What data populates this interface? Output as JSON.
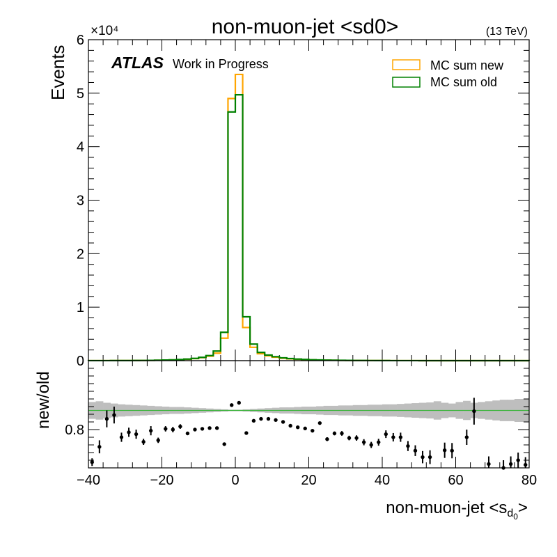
{
  "chart_data": [
    {
      "type": "line",
      "panel": "main",
      "title": "non-muon-jet <sd0>",
      "energy_label": "(13 TeV)",
      "scale_label": "×10⁴",
      "atlas_label": "ATLAS",
      "atlas_sublabel": "Work in Progress",
      "ylabel": "Events",
      "xlim": [
        -40,
        80
      ],
      "ylim": [
        0,
        60000
      ],
      "yticks": [
        0,
        10000,
        20000,
        30000,
        40000,
        50000,
        60000
      ],
      "ytick_labels": [
        "0",
        "1",
        "2",
        "3",
        "4",
        "5",
        "6"
      ],
      "legend_position": "top-right",
      "legend": [
        {
          "name": "MC sum new",
          "color": "#ffa500"
        },
        {
          "name": "MC sum old",
          "color": "#008000"
        }
      ],
      "bin_edges": [
        -40,
        -38,
        -36,
        -34,
        -32,
        -30,
        -28,
        -26,
        -24,
        -22,
        -20,
        -18,
        -16,
        -14,
        -12,
        -10,
        -8,
        -6,
        -4,
        -2,
        0,
        2,
        4,
        6,
        8,
        10,
        12,
        14,
        16,
        18,
        20,
        22,
        24,
        26,
        28,
        30,
        32,
        34,
        36,
        38,
        40,
        42,
        44,
        46,
        48,
        50,
        52,
        54,
        56,
        58,
        60,
        62,
        64,
        66,
        68,
        70,
        72,
        74,
        76,
        78,
        80
      ],
      "series": [
        {
          "name": "MC sum new",
          "color": "#ffa500",
          "values": [
            5,
            8,
            10,
            12,
            15,
            20,
            30,
            40,
            55,
            75,
            100,
            140,
            190,
            260,
            380,
            560,
            850,
            1400,
            4200,
            49000,
            53500,
            6200,
            2500,
            1300,
            900,
            640,
            460,
            340,
            260,
            200,
            150,
            115,
            90,
            70,
            55,
            42,
            33,
            26,
            20,
            16,
            12,
            10,
            8,
            6,
            5,
            4,
            3,
            3,
            2,
            2,
            2,
            1,
            1,
            1,
            1,
            1,
            1,
            1,
            1,
            1
          ]
        },
        {
          "name": "MC sum old",
          "color": "#008000",
          "values": [
            5,
            8,
            10,
            12,
            15,
            21,
            31,
            42,
            58,
            80,
            110,
            155,
            210,
            290,
            420,
            620,
            950,
            1800,
            5300,
            46500,
            49700,
            8200,
            3100,
            1550,
            1050,
            740,
            530,
            390,
            295,
            225,
            170,
            130,
            100,
            78,
            61,
            47,
            37,
            29,
            22,
            17,
            13,
            11,
            9,
            7,
            5,
            4,
            3,
            3,
            2,
            2,
            2,
            1,
            1,
            1,
            1,
            1,
            1,
            1,
            1,
            1
          ]
        }
      ]
    },
    {
      "type": "scatter",
      "panel": "ratio",
      "ylabel": "new/old",
      "xlabel": "non-muon-jet <s",
      "xlabel_sub": "d",
      "xlabel_subsub": "0",
      "xlabel_close": ">",
      "xlim": [
        -40,
        80
      ],
      "ylim": [
        0.7,
        0.98
      ],
      "yticks": [
        0.8
      ],
      "ytick_labels": [
        "0.8"
      ],
      "xticks": [
        -40,
        -20,
        0,
        20,
        40,
        60,
        80
      ],
      "xtick_labels": [
        "−40",
        "−20",
        "0",
        "20",
        "40",
        "60",
        "80"
      ],
      "reference_line": 0.85,
      "reference_color": "#3cb43c",
      "band_color": "#bebebe",
      "band_halfwidth": [
        0.022,
        0.024,
        0.02,
        0.018,
        0.016,
        0.015,
        0.014,
        0.013,
        0.012,
        0.011,
        0.01,
        0.009,
        0.009,
        0.008,
        0.007,
        0.006,
        0.005,
        0.004,
        0.003,
        0.002,
        0.002,
        0.003,
        0.004,
        0.005,
        0.006,
        0.007,
        0.008,
        0.008,
        0.009,
        0.01,
        0.01,
        0.011,
        0.012,
        0.012,
        0.013,
        0.013,
        0.014,
        0.014,
        0.015,
        0.015,
        0.016,
        0.016,
        0.017,
        0.018,
        0.019,
        0.02,
        0.021,
        0.024,
        0.02,
        0.018,
        0.022,
        0.025,
        0.02,
        0.022,
        0.024,
        0.026,
        0.028,
        0.028,
        0.03,
        0.03
      ],
      "points": [
        {
          "x": -39,
          "y": 0.715,
          "err": 0.01
        },
        {
          "x": -37,
          "y": 0.755,
          "err": 0.017
        },
        {
          "x": -35,
          "y": 0.828,
          "err": 0.022
        },
        {
          "x": -33,
          "y": 0.838,
          "err": 0.022
        },
        {
          "x": -31,
          "y": 0.78,
          "err": 0.012
        },
        {
          "x": -29,
          "y": 0.793,
          "err": 0.012
        },
        {
          "x": -27,
          "y": 0.788,
          "err": 0.012
        },
        {
          "x": -25,
          "y": 0.768,
          "err": 0.008
        },
        {
          "x": -23,
          "y": 0.797,
          "err": 0.012
        },
        {
          "x": -21,
          "y": 0.772,
          "err": 0.007
        },
        {
          "x": -19,
          "y": 0.802,
          "err": 0.007
        },
        {
          "x": -17,
          "y": 0.8,
          "err": 0.007
        },
        {
          "x": -15,
          "y": 0.808,
          "err": 0.006
        },
        {
          "x": -13,
          "y": 0.79,
          "err": 0.004
        },
        {
          "x": -11,
          "y": 0.8,
          "err": 0.003
        },
        {
          "x": -9,
          "y": 0.802,
          "err": 0.003
        },
        {
          "x": -7,
          "y": 0.804,
          "err": 0.002
        },
        {
          "x": -5,
          "y": 0.804,
          "err": 0.002
        },
        {
          "x": -3,
          "y": 0.762,
          "err": 0.002
        },
        {
          "x": -1,
          "y": 0.864,
          "err": 0.002
        },
        {
          "x": 1,
          "y": 0.87,
          "err": 0.002
        },
        {
          "x": 3,
          "y": 0.791,
          "err": 0.002
        },
        {
          "x": 5,
          "y": 0.823,
          "err": 0.002
        },
        {
          "x": 7,
          "y": 0.828,
          "err": 0.002
        },
        {
          "x": 9,
          "y": 0.828,
          "err": 0.002
        },
        {
          "x": 11,
          "y": 0.825,
          "err": 0.003
        },
        {
          "x": 13,
          "y": 0.82,
          "err": 0.003
        },
        {
          "x": 15,
          "y": 0.81,
          "err": 0.003
        },
        {
          "x": 17,
          "y": 0.806,
          "err": 0.003
        },
        {
          "x": 19,
          "y": 0.803,
          "err": 0.004
        },
        {
          "x": 21,
          "y": 0.797,
          "err": 0.004
        },
        {
          "x": 23,
          "y": 0.817,
          "err": 0.004
        },
        {
          "x": 25,
          "y": 0.775,
          "err": 0.005
        },
        {
          "x": 27,
          "y": 0.79,
          "err": 0.005
        },
        {
          "x": 29,
          "y": 0.79,
          "err": 0.006
        },
        {
          "x": 31,
          "y": 0.778,
          "err": 0.006
        },
        {
          "x": 33,
          "y": 0.778,
          "err": 0.007
        },
        {
          "x": 35,
          "y": 0.767,
          "err": 0.008
        },
        {
          "x": 37,
          "y": 0.76,
          "err": 0.008
        },
        {
          "x": 39,
          "y": 0.767,
          "err": 0.009
        },
        {
          "x": 41,
          "y": 0.788,
          "err": 0.01
        },
        {
          "x": 43,
          "y": 0.78,
          "err": 0.011
        },
        {
          "x": 45,
          "y": 0.78,
          "err": 0.012
        },
        {
          "x": 47,
          "y": 0.757,
          "err": 0.013
        },
        {
          "x": 49,
          "y": 0.745,
          "err": 0.014
        },
        {
          "x": 51,
          "y": 0.728,
          "err": 0.016
        },
        {
          "x": 53,
          "y": 0.728,
          "err": 0.018
        },
        {
          "x": 57,
          "y": 0.746,
          "err": 0.02
        },
        {
          "x": 59,
          "y": 0.745,
          "err": 0.02
        },
        {
          "x": 63,
          "y": 0.78,
          "err": 0.02
        },
        {
          "x": 65,
          "y": 0.848,
          "err": 0.035
        },
        {
          "x": 69,
          "y": 0.71,
          "err": 0.02
        },
        {
          "x": 73,
          "y": 0.7,
          "err": 0.02
        },
        {
          "x": 75,
          "y": 0.71,
          "err": 0.02
        },
        {
          "x": 77,
          "y": 0.72,
          "err": 0.02
        },
        {
          "x": 79,
          "y": 0.708,
          "err": 0.02
        }
      ]
    }
  ]
}
